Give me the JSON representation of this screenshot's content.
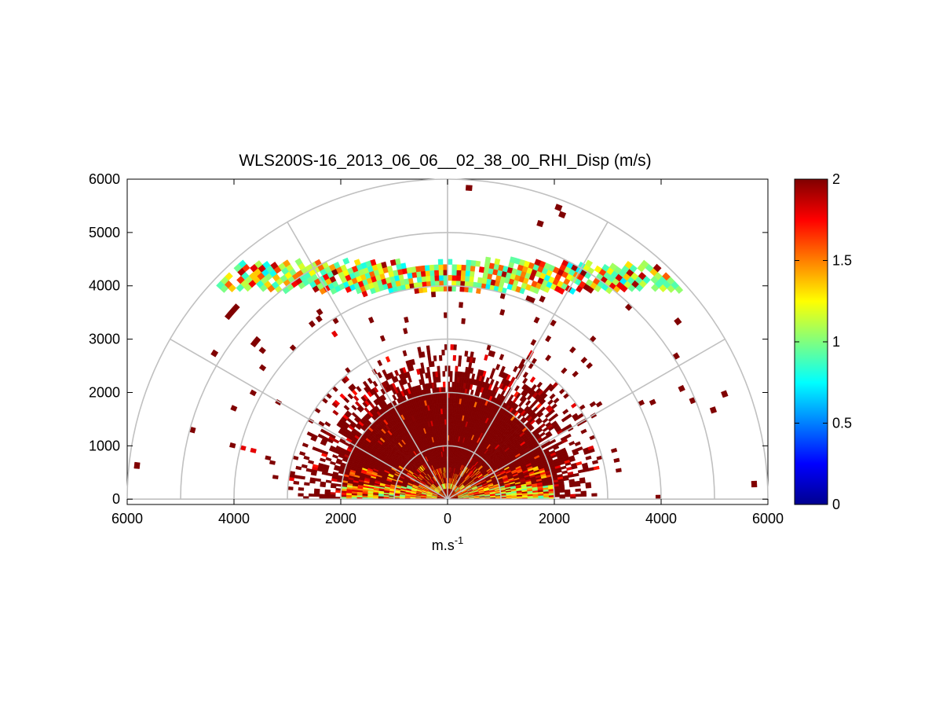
{
  "chart_data": {
    "type": "heatmap",
    "subtype": "polar-rhi-scan",
    "title": "WLS200S-16_2013_06_06__02_38_00_RHI_Disp (m/s)",
    "xlabel": "m.s",
    "xlabel_superscript": "-1",
    "ylabel": "",
    "xlim": [
      -6000,
      6000
    ],
    "ylim": [
      -100,
      6000
    ],
    "x_ticks": [
      -6000,
      -4000,
      -2000,
      0,
      2000,
      4000,
      6000
    ],
    "x_tick_labels": [
      "6000",
      "4000",
      "2000",
      "0",
      "2000",
      "4000",
      "6000"
    ],
    "y_ticks": [
      0,
      1000,
      2000,
      3000,
      4000,
      5000,
      6000
    ],
    "y_tick_labels": [
      "0",
      "1000",
      "2000",
      "3000",
      "4000",
      "5000",
      "6000"
    ],
    "range_rings_m": [
      1000,
      2000,
      3000,
      4000,
      5000,
      6000
    ],
    "spoke_angles_deg": [
      0,
      30,
      60,
      90,
      120,
      150,
      180
    ],
    "colorbar": {
      "min": 0,
      "max": 2,
      "ticks": [
        0,
        0.5,
        1,
        1.5,
        2
      ],
      "tick_labels": [
        "0",
        "0.5",
        "1",
        "1.5",
        "2"
      ],
      "colormap": "jet"
    },
    "features": [
      {
        "name": "near-field saturated region",
        "range_m": [
          0,
          3000
        ],
        "value": 2
      },
      {
        "name": "low-elevation gradient band",
        "range_m": [
          0,
          2000
        ],
        "value_range": [
          1.0,
          2.0
        ]
      },
      {
        "name": "cloud-base layer",
        "height_m": [
          3900,
          4600
        ],
        "value_range": [
          0.5,
          2.0
        ]
      }
    ]
  }
}
